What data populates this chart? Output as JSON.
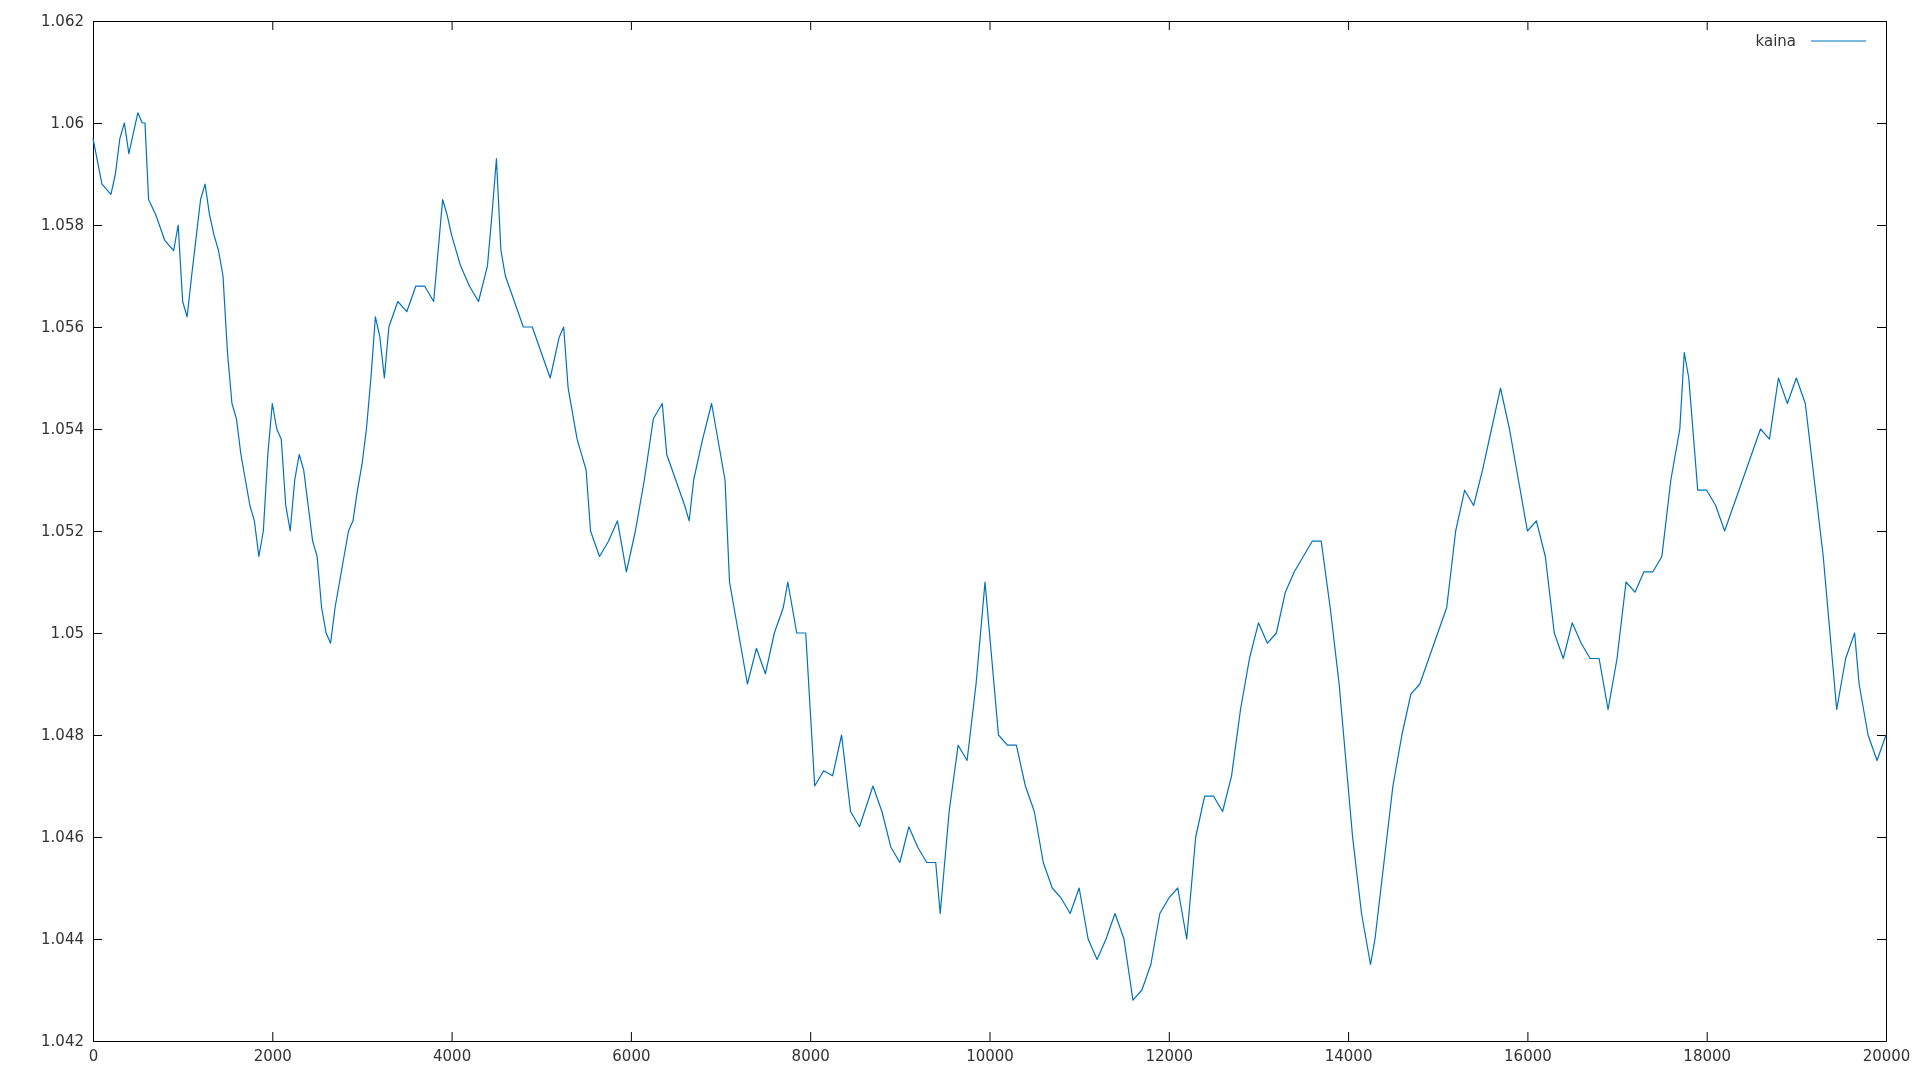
{
  "chart_data": {
    "type": "line",
    "legend": "top right",
    "xlim": [
      0,
      20000
    ],
    "ylim": [
      1.042,
      1.062
    ],
    "xticks": [
      0,
      2000,
      4000,
      6000,
      8000,
      10000,
      12000,
      14000,
      16000,
      18000,
      20000
    ],
    "yticks": [
      1.042,
      1.044,
      1.046,
      1.048,
      1.05,
      1.052,
      1.054,
      1.056,
      1.058,
      1.06,
      1.062
    ],
    "x": [
      0,
      100,
      200,
      250,
      300,
      350,
      400,
      450,
      500,
      550,
      580,
      620,
      700,
      800,
      900,
      950,
      1000,
      1050,
      1100,
      1200,
      1250,
      1300,
      1350,
      1400,
      1450,
      1500,
      1550,
      1600,
      1650,
      1700,
      1750,
      1800,
      1850,
      1900,
      1950,
      2000,
      2050,
      2100,
      2150,
      2200,
      2250,
      2300,
      2350,
      2400,
      2450,
      2500,
      2550,
      2600,
      2650,
      2700,
      2750,
      2800,
      2850,
      2900,
      2950,
      3000,
      3050,
      3100,
      3150,
      3200,
      3250,
      3300,
      3400,
      3500,
      3600,
      3700,
      3800,
      3850,
      3900,
      3950,
      4000,
      4100,
      4200,
      4300,
      4400,
      4450,
      4500,
      4550,
      4600,
      4700,
      4800,
      4900,
      5000,
      5100,
      5200,
      5250,
      5300,
      5400,
      5500,
      5550,
      5650,
      5750,
      5850,
      5950,
      6050,
      6150,
      6250,
      6350,
      6400,
      6500,
      6600,
      6650,
      6700,
      6800,
      6900,
      6950,
      7050,
      7100,
      7200,
      7300,
      7400,
      7500,
      7600,
      7700,
      7750,
      7850,
      7950,
      8000,
      8050,
      8150,
      8250,
      8350,
      8450,
      8550,
      8700,
      8800,
      8900,
      9000,
      9100,
      9200,
      9300,
      9400,
      9450,
      9550,
      9650,
      9750,
      9850,
      9950,
      10000,
      10050,
      10100,
      10200,
      10300,
      10400,
      10500,
      10600,
      10700,
      10800,
      10900,
      11000,
      11100,
      11200,
      11300,
      11400,
      11500,
      11600,
      11700,
      11800,
      11900,
      12000,
      12100,
      12200,
      12250,
      12300,
      12400,
      12500,
      12600,
      12700,
      12800,
      12900,
      13000,
      13100,
      13200,
      13300,
      13400,
      13500,
      13600,
      13700,
      13800,
      13900,
      14000,
      14050,
      14150,
      14250,
      14300,
      14400,
      14500,
      14600,
      14700,
      14800,
      14900,
      15000,
      15100,
      15200,
      15300,
      15400,
      15500,
      15600,
      15700,
      15800,
      15900,
      16000,
      16100,
      16200,
      16300,
      16400,
      16500,
      16600,
      16700,
      16800,
      16900,
      17000,
      17100,
      17200,
      17300,
      17400,
      17500,
      17600,
      17700,
      17750,
      17800,
      17900,
      18000,
      18100,
      18200,
      18300,
      18400,
      18500,
      18600,
      18700,
      18800,
      18900,
      19000,
      19100,
      19200,
      19300,
      19400,
      19450,
      19550,
      19650,
      19700,
      19800,
      19900,
      20000
    ],
    "series": [
      {
        "name": "kaina",
        "color": "#0072bd",
        "values": [
          1.0597,
          1.0588,
          1.0586,
          1.059,
          1.0597,
          1.06,
          1.0594,
          1.0598,
          1.0602,
          1.06,
          1.06,
          1.0585,
          1.0582,
          1.0577,
          1.0575,
          1.058,
          1.0565,
          1.0562,
          1.057,
          1.0585,
          1.0588,
          1.0582,
          1.0578,
          1.0575,
          1.057,
          1.0555,
          1.0545,
          1.0542,
          1.0535,
          1.053,
          1.0525,
          1.0522,
          1.0515,
          1.052,
          1.0535,
          1.0545,
          1.054,
          1.0538,
          1.0525,
          1.052,
          1.053,
          1.0535,
          1.0532,
          1.0525,
          1.0518,
          1.0515,
          1.0505,
          1.05,
          1.0498,
          1.0505,
          1.051,
          1.0515,
          1.052,
          1.0522,
          1.0528,
          1.0533,
          1.054,
          1.055,
          1.0562,
          1.0558,
          1.055,
          1.056,
          1.0565,
          1.0563,
          1.0568,
          1.0568,
          1.0565,
          1.0575,
          1.0585,
          1.0582,
          1.0578,
          1.0572,
          1.0568,
          1.0565,
          1.0572,
          1.0582,
          1.0593,
          1.0575,
          1.057,
          1.0565,
          1.056,
          1.056,
          1.0555,
          1.055,
          1.0558,
          1.056,
          1.0548,
          1.0538,
          1.0532,
          1.052,
          1.0515,
          1.0518,
          1.0522,
          1.0512,
          1.052,
          1.053,
          1.0542,
          1.0545,
          1.0535,
          1.053,
          1.0525,
          1.0522,
          1.053,
          1.0538,
          1.0545,
          1.054,
          1.053,
          1.051,
          1.05,
          1.049,
          1.0497,
          1.0492,
          1.05,
          1.0505,
          1.051,
          1.05,
          1.05,
          1.0485,
          1.047,
          1.0473,
          1.0472,
          1.048,
          1.0465,
          1.0462,
          1.047,
          1.0465,
          1.0458,
          1.0455,
          1.0462,
          1.0458,
          1.0455,
          1.0455,
          1.0445,
          1.0465,
          1.0478,
          1.0475,
          1.049,
          1.051,
          1.05,
          1.049,
          1.048,
          1.0478,
          1.0478,
          1.047,
          1.0465,
          1.0455,
          1.045,
          1.0448,
          1.0445,
          1.045,
          1.044,
          1.0436,
          1.044,
          1.0445,
          1.044,
          1.0428,
          1.043,
          1.0435,
          1.0445,
          1.0448,
          1.045,
          1.044,
          1.045,
          1.046,
          1.0468,
          1.0468,
          1.0465,
          1.0472,
          1.0485,
          1.0495,
          1.0502,
          1.0498,
          1.05,
          1.0508,
          1.0512,
          1.0515,
          1.0518,
          1.0518,
          1.0505,
          1.049,
          1.047,
          1.046,
          1.0445,
          1.0435,
          1.044,
          1.0455,
          1.047,
          1.048,
          1.0488,
          1.049,
          1.0495,
          1.05,
          1.0505,
          1.052,
          1.0528,
          1.0525,
          1.0532,
          1.054,
          1.0548,
          1.054,
          1.053,
          1.052,
          1.0522,
          1.0515,
          1.05,
          1.0495,
          1.0502,
          1.0498,
          1.0495,
          1.0495,
          1.0485,
          1.0495,
          1.051,
          1.0508,
          1.0512,
          1.0512,
          1.0515,
          1.053,
          1.054,
          1.0555,
          1.055,
          1.0528,
          1.0528,
          1.0525,
          1.052,
          1.0525,
          1.053,
          1.0535,
          1.054,
          1.0538,
          1.055,
          1.0545,
          1.055,
          1.0545,
          1.053,
          1.0515,
          1.0495,
          1.0485,
          1.0495,
          1.05,
          1.049,
          1.048,
          1.0475,
          1.048
        ]
      }
    ]
  }
}
